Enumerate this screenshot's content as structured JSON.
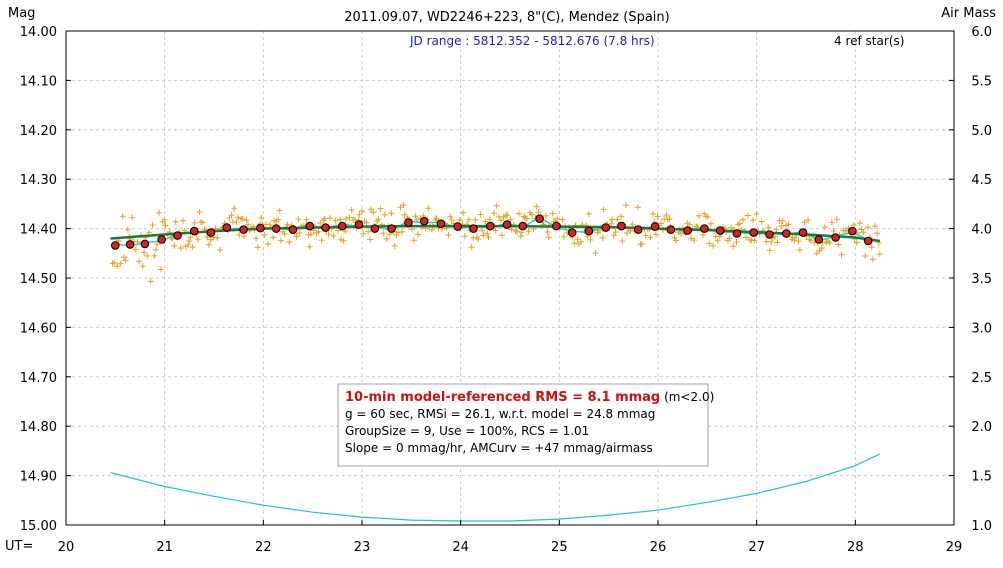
{
  "chart_data": {
    "type": "scatter",
    "title": "2011.09.07, WD2246+223, 8\"(C), Mendez (Spain)",
    "ylabel_left": "Mag",
    "ylabel_right": "Air Mass",
    "xlabel": "UT=",
    "jd_range": "JD range : 5812.352 - 5812.676 (7.8 hrs)",
    "ref_stars": "4 ref star(s)",
    "xlim": [
      20,
      29
    ],
    "ylim_mag": [
      15.0,
      14.0
    ],
    "ylim_airmass": [
      1.0,
      6.0
    ],
    "x_ticks": [
      "20",
      "21",
      "22",
      "23",
      "24",
      "25",
      "26",
      "27",
      "28",
      "29"
    ],
    "y_ticks_left": [
      "14.00",
      "14.10",
      "14.20",
      "14.30",
      "14.40",
      "14.50",
      "14.60",
      "14.70",
      "14.80",
      "14.90",
      "15.00"
    ],
    "y_ticks_right": [
      "6.0",
      "5.5",
      "5.0",
      "4.5",
      "4.0",
      "3.5",
      "3.0",
      "2.5",
      "2.0",
      "1.5",
      "1.0"
    ],
    "grid": true,
    "colors": {
      "raw": "#e8a020",
      "binned_fill": "#d42020",
      "model": "#1e7a3c",
      "running": "#22d4d4",
      "airmass": "#1ec0e0",
      "info_red": "#cc1111",
      "jd_text": "#2020c0"
    },
    "info_box": {
      "line1_red": "10-min model-referenced RMS = 8.1 mmag",
      "line1_black": " (m<2.0)",
      "line2": "g = 60 sec, RMSi = 26.1, w.r.t. model = 24.8 mmag",
      "line3": "GroupSize = 9, Use = 100%, RCS = 1.01",
      "line4": "Slope = 0 mmag/hr, AMCurv = +47 mmag/airmass"
    },
    "series": [
      {
        "kind": "binned",
        "x": [
          20.5,
          20.65,
          20.8,
          20.97,
          21.13,
          21.3,
          21.47,
          21.63,
          21.8,
          21.97,
          22.13,
          22.3,
          22.47,
          22.63,
          22.8,
          22.97,
          23.13,
          23.3,
          23.47,
          23.63,
          23.8,
          23.97,
          24.13,
          24.3,
          24.47,
          24.63,
          24.8,
          24.97,
          25.13,
          25.3,
          25.47,
          25.63,
          25.8,
          25.97,
          26.13,
          26.3,
          26.47,
          26.63,
          26.8,
          26.97,
          27.13,
          27.3,
          27.47,
          27.63,
          27.8,
          27.97,
          28.13
        ],
        "y": [
          14.434,
          14.432,
          14.431,
          14.422,
          14.414,
          14.405,
          14.408,
          14.398,
          14.402,
          14.399,
          14.4,
          14.402,
          14.395,
          14.398,
          14.395,
          14.392,
          14.4,
          14.4,
          14.388,
          14.385,
          14.39,
          14.396,
          14.4,
          14.395,
          14.392,
          14.395,
          14.38,
          14.395,
          14.408,
          14.405,
          14.398,
          14.395,
          14.402,
          14.396,
          14.402,
          14.404,
          14.4,
          14.404,
          14.41,
          14.408,
          14.412,
          14.41,
          14.408,
          14.422,
          14.418,
          14.405,
          14.425
        ]
      },
      {
        "kind": "model",
        "x": [
          20.45,
          21.0,
          21.5,
          22.0,
          22.5,
          23.0,
          23.5,
          24.0,
          24.5,
          25.0,
          25.5,
          26.0,
          26.5,
          27.0,
          27.5,
          28.0,
          28.25
        ],
        "y": [
          14.42,
          14.412,
          14.405,
          14.4,
          14.398,
          14.396,
          14.395,
          14.395,
          14.395,
          14.396,
          14.397,
          14.4,
          14.403,
          14.407,
          14.412,
          14.418,
          14.425
        ]
      },
      {
        "kind": "airmass",
        "x": [
          20.45,
          21.0,
          21.5,
          22.0,
          22.5,
          23.0,
          23.5,
          24.0,
          24.5,
          25.0,
          25.5,
          26.0,
          26.5,
          27.0,
          27.5,
          28.0,
          28.25
        ],
        "y": [
          1.53,
          1.39,
          1.29,
          1.2,
          1.13,
          1.08,
          1.05,
          1.04,
          1.04,
          1.06,
          1.1,
          1.15,
          1.23,
          1.32,
          1.44,
          1.6,
          1.72
        ]
      }
    ]
  }
}
